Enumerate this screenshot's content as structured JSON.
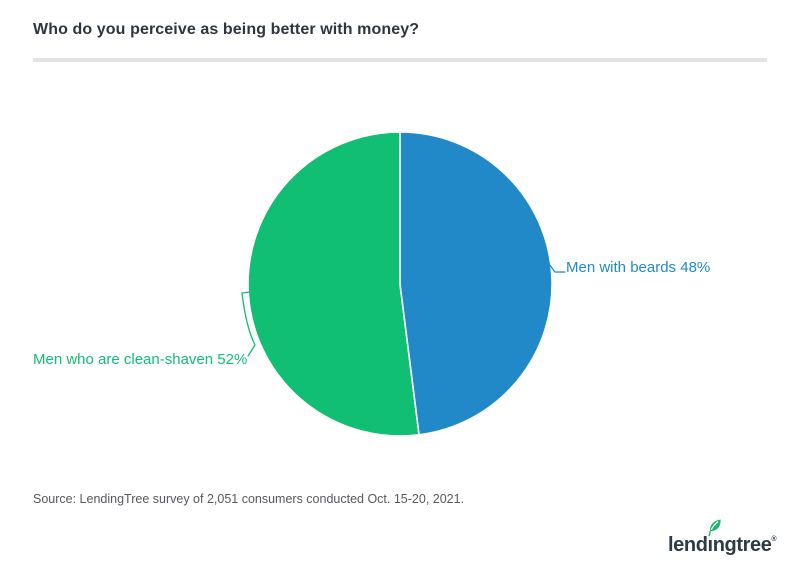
{
  "header": {
    "title": "Who do you perceive as being better with money?"
  },
  "chart_data": {
    "type": "pie",
    "title": "Who do you perceive as being better with money?",
    "direction": "clockwise",
    "start_angle_deg": 0,
    "label_position": "outside",
    "slices": [
      {
        "label": "Men with beards",
        "value_pct": 48,
        "display": "Men with beards 48%",
        "color": "#2289c9"
      },
      {
        "label": "Men who are clean-shaven",
        "value_pct": 52,
        "display": "Men who are clean-shaven 52%",
        "color": "#10bf73"
      }
    ]
  },
  "footer": {
    "source": "Source: LendingTree survey of 2,051 consumers conducted Oct. 15-20, 2021.",
    "logo": {
      "brand": "LendingTree",
      "word_part1": "lend",
      "word_i": "ı",
      "word_part2": "ngtree",
      "registered_mark": "®",
      "leaf_green": "#21b573",
      "text_color": "#2e3b44"
    }
  }
}
